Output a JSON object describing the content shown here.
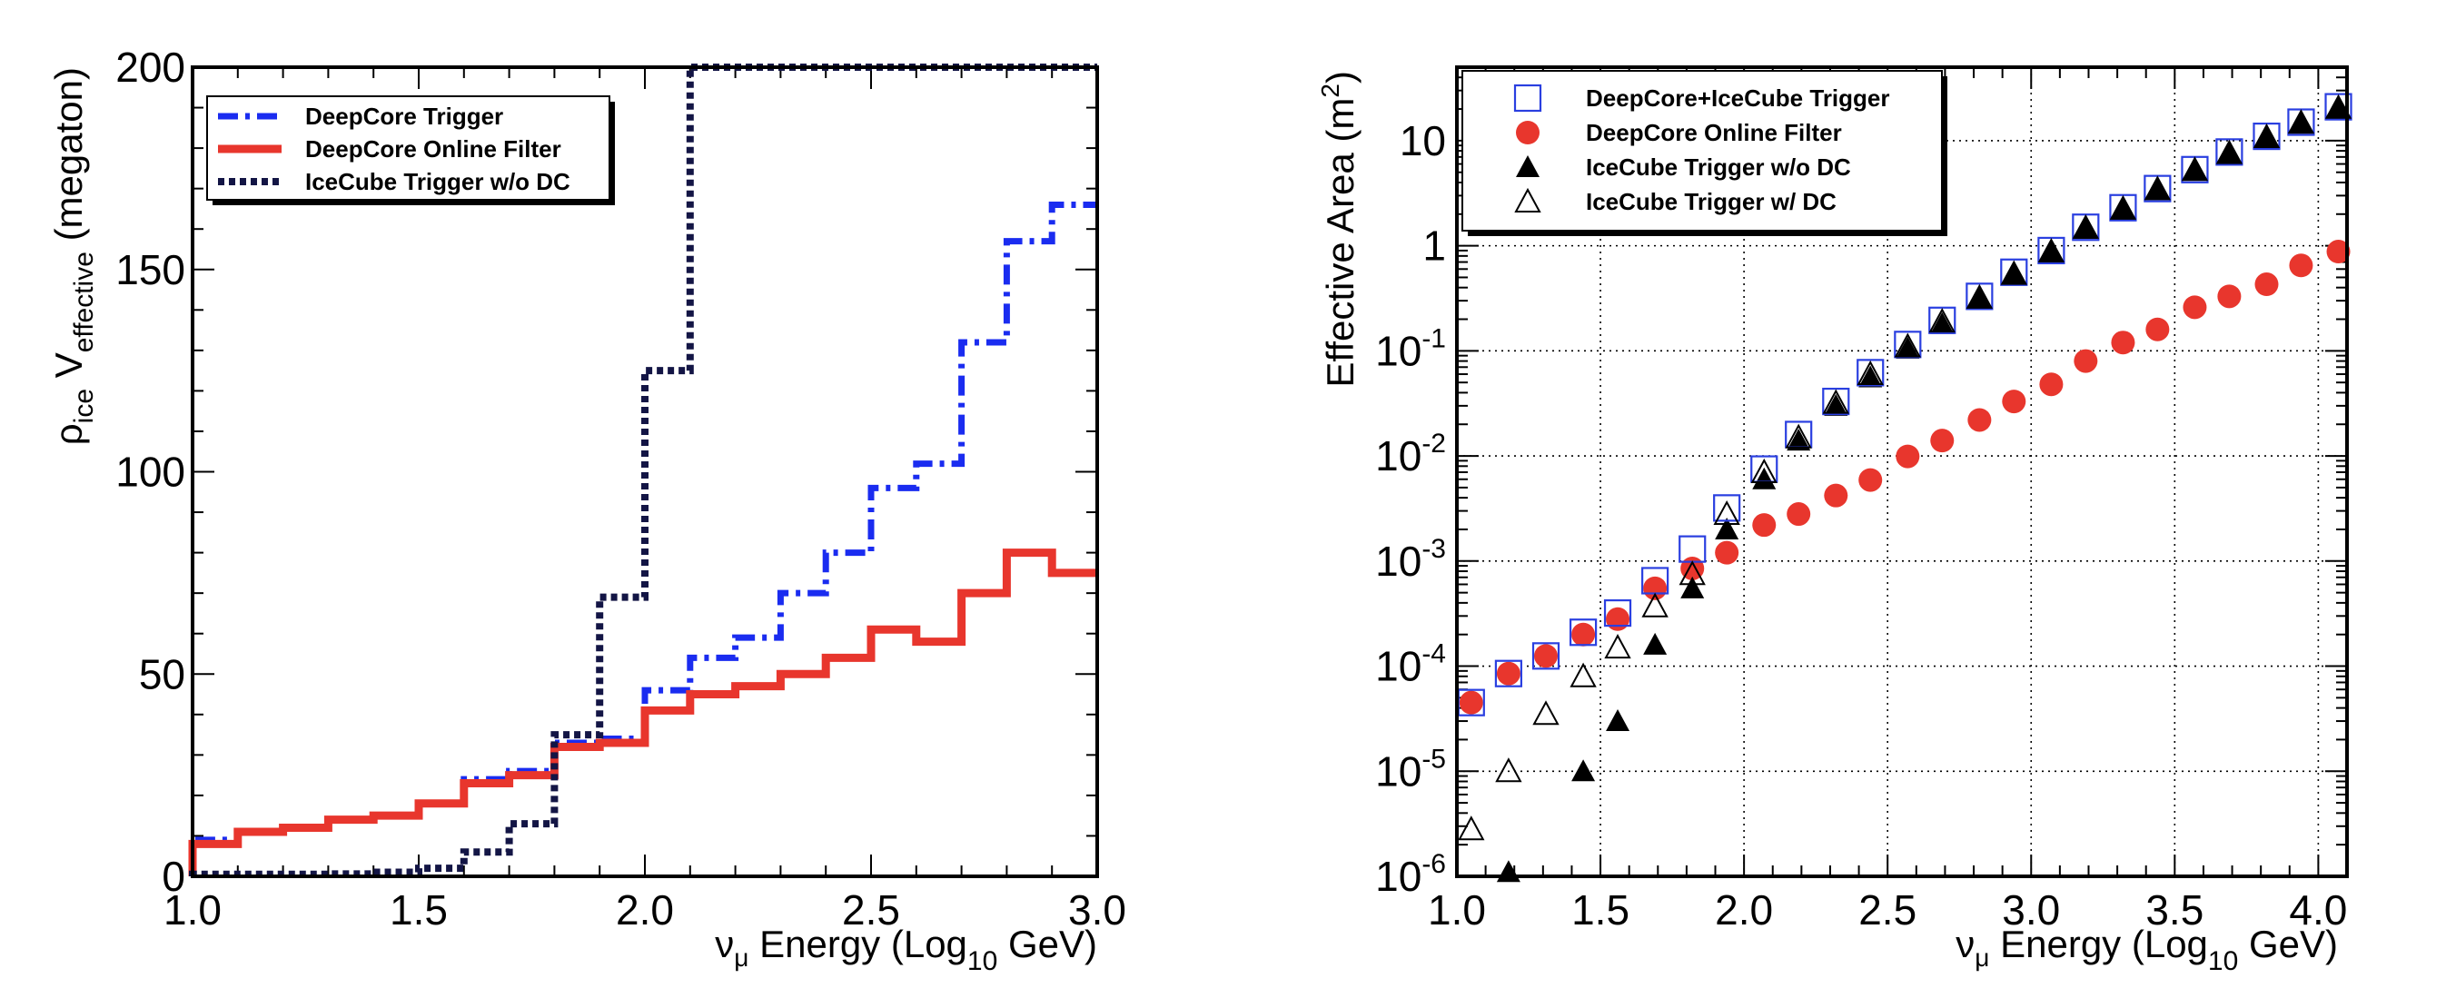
{
  "chart_data": [
    {
      "type": "line",
      "step": true,
      "xlabel": {
        "prefix": "ν",
        "prefix_sub": "μ",
        "main": " Energy (Log",
        "sub": "10",
        "suffix": " GeV)"
      },
      "ylabel": {
        "a": "ρ",
        "a_sub": "ice",
        "b": " V",
        "b_sub": "effective",
        "c": " (megaton)"
      },
      "xlim": [
        1.0,
        3.0
      ],
      "ylim": [
        0,
        200
      ],
      "xticks": [
        1.0,
        1.5,
        2.0,
        2.5,
        3.0
      ],
      "xtick_labels": [
        "1.0",
        "1.5",
        "2.0",
        "2.5",
        "3.0"
      ],
      "yticks": [
        0,
        50,
        100,
        150,
        200
      ],
      "ytick_labels": [
        "0",
        "50",
        "100",
        "150",
        "200"
      ],
      "grid": false,
      "legend_position": "top-left",
      "bin_edges": [
        1.0,
        1.1,
        1.2,
        1.3,
        1.4,
        1.5,
        1.6,
        1.7,
        1.8,
        1.9,
        2.0,
        2.1,
        2.2,
        2.3,
        2.4,
        2.5,
        2.6,
        2.7,
        2.8,
        2.9,
        3.0
      ],
      "series": [
        {
          "name": "DeepCore Trigger",
          "color": "#1a2cf0",
          "style": "dashdot",
          "values": [
            9,
            11,
            12,
            14,
            15,
            18,
            24,
            26,
            33,
            34,
            46,
            54,
            59,
            70,
            80,
            96,
            102,
            132,
            157,
            166
          ]
        },
        {
          "name": "DeepCore Online Filter",
          "color": "#e8362d",
          "style": "solid",
          "values": [
            8,
            11,
            12,
            14,
            15,
            18,
            23,
            25,
            32,
            33,
            41,
            45,
            47,
            50,
            54,
            61,
            58,
            70,
            80,
            75
          ]
        },
        {
          "name": "IceCube Trigger w/o DC",
          "color": "#131545",
          "style": "dotted",
          "values": [
            0.5,
            0.5,
            0.5,
            0.6,
            1,
            2,
            6,
            13,
            35,
            69,
            125,
            200,
            200,
            200,
            200,
            200,
            200,
            200,
            200,
            200
          ]
        }
      ]
    },
    {
      "type": "scatter",
      "ylog": true,
      "xlabel": {
        "prefix": "ν",
        "prefix_sub": "μ",
        "main": " Energy (Log",
        "sub": "10",
        "suffix": " GeV)"
      },
      "ylabel": {
        "main": "Effective Area (m",
        "sup": "2",
        "suffix": ")"
      },
      "xlim": [
        1.0,
        4.1
      ],
      "ylim": [
        1e-06,
        50
      ],
      "xticks": [
        1.0,
        1.5,
        2.0,
        2.5,
        3.0,
        3.5,
        4.0
      ],
      "xtick_labels": [
        "1.0",
        "1.5",
        "2.0",
        "2.5",
        "3.0",
        "3.5",
        "4.0"
      ],
      "yticks": [
        1e-06,
        1e-05,
        0.0001,
        0.001,
        0.01,
        0.1,
        1,
        10
      ],
      "ytick_labels": [
        {
          "base": "10",
          "exp": "-6"
        },
        {
          "base": "10",
          "exp": "-5"
        },
        {
          "base": "10",
          "exp": "-4"
        },
        {
          "base": "10",
          "exp": "-3"
        },
        {
          "base": "10",
          "exp": "-2"
        },
        {
          "base": "10",
          "exp": "-1"
        },
        {
          "base": "1",
          "exp": ""
        },
        {
          "base": "10",
          "exp": ""
        }
      ],
      "grid": true,
      "legend_position": "top-left",
      "x": [
        1.05,
        1.18,
        1.31,
        1.44,
        1.56,
        1.69,
        1.82,
        1.94,
        2.07,
        2.19,
        2.32,
        2.44,
        2.57,
        2.69,
        2.82,
        2.94,
        3.07,
        3.19,
        3.32,
        3.44,
        3.57,
        3.69,
        3.82,
        3.94,
        4.07
      ],
      "series": [
        {
          "name": "DeepCore+IceCube Trigger",
          "marker": "open-square",
          "color": "#2a3fe0",
          "values": [
            4.5e-05,
            8.5e-05,
            0.000125,
            0.00021,
            0.00032,
            0.00065,
            0.0013,
            0.0032,
            0.0075,
            0.016,
            0.033,
            0.062,
            0.115,
            0.195,
            0.33,
            0.56,
            0.9,
            1.5,
            2.3,
            3.5,
            5.3,
            7.8,
            11,
            15,
            21
          ]
        },
        {
          "name": "DeepCore Online Filter",
          "marker": "filled-circle",
          "color": "#e8362d",
          "values": [
            4.5e-05,
            8.5e-05,
            0.000125,
            0.0002,
            0.00028,
            0.00055,
            0.00085,
            0.0012,
            0.0022,
            0.0028,
            0.0042,
            0.0059,
            0.0099,
            0.014,
            0.022,
            0.033,
            0.048,
            0.08,
            0.12,
            0.16,
            0.26,
            0.33,
            0.43,
            0.65,
            0.88
          ]
        },
        {
          "name": "IceCube Trigger w/o DC",
          "marker": "filled-triangle",
          "color": "#000000",
          "values": [
            null,
            1.1e-06,
            null,
            1e-05,
            3e-05,
            0.00016,
            0.00055,
            0.002,
            0.006,
            0.014,
            0.03,
            0.056,
            0.105,
            0.18,
            0.31,
            0.53,
            0.86,
            1.45,
            2.2,
            3.4,
            5.2,
            7.5,
            10.5,
            14.5,
            20
          ]
        },
        {
          "name": "IceCube Trigger w/ DC",
          "marker": "open-triangle",
          "color": "#000000",
          "values": [
            2.8e-06,
            1e-05,
            3.5e-05,
            8e-05,
            0.00015,
            0.00037,
            0.00075,
            0.0028,
            0.007,
            0.015,
            0.032,
            0.06,
            0.11,
            0.19,
            0.32,
            0.54,
            0.88,
            1.48,
            2.25,
            3.45,
            5.25,
            7.6,
            10.8,
            14.8,
            20.5
          ]
        }
      ]
    }
  ]
}
